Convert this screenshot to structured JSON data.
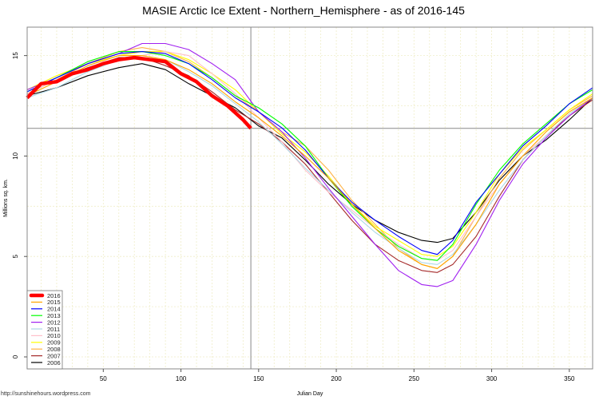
{
  "chart_data": {
    "type": "line",
    "title": "MASIE Arctic Ice Extent - Northern_Hemisphere - as of 2016-145",
    "xlabel": "Julian Day",
    "ylabel": "Millions sq. km.",
    "xlim": [
      1,
      365
    ],
    "ylim": [
      0,
      15.8
    ],
    "xticks": [
      50,
      100,
      150,
      200,
      250,
      300,
      350
    ],
    "yticks": [
      0,
      5,
      10,
      15
    ],
    "grid": true,
    "legend": "bottom-left",
    "reference_lines": {
      "x": 145,
      "y": 11.38
    },
    "days": [
      1,
      20,
      40,
      60,
      75,
      90,
      105,
      120,
      135,
      150,
      165,
      180,
      195,
      210,
      225,
      240,
      255,
      265,
      275,
      290,
      305,
      320,
      335,
      350,
      365
    ],
    "series": [
      {
        "name": "2016",
        "color": "#FF0000",
        "days": [
          1,
          10,
          20,
          30,
          40,
          50,
          60,
          70,
          80,
          90,
          100,
          110,
          120,
          130,
          140,
          145
        ],
        "values": [
          12.9,
          13.6,
          13.7,
          14.1,
          14.3,
          14.6,
          14.8,
          14.9,
          14.8,
          14.7,
          14.1,
          13.7,
          13.0,
          12.5,
          11.8,
          11.38
        ]
      },
      {
        "name": "2015",
        "color": "#FFA500",
        "values": [
          13.0,
          13.7,
          14.5,
          15.0,
          15.0,
          14.8,
          14.3,
          13.6,
          12.7,
          11.9,
          11.0,
          10.0,
          8.9,
          7.6,
          6.4,
          5.3,
          4.6,
          4.4,
          5.0,
          6.6,
          8.6,
          10.0,
          11.2,
          12.2,
          12.9
        ]
      },
      {
        "name": "2014",
        "color": "#0000FF",
        "values": [
          13.2,
          13.9,
          14.6,
          15.1,
          15.2,
          15.1,
          14.6,
          13.8,
          12.9,
          12.2,
          11.4,
          10.3,
          8.9,
          7.7,
          6.8,
          6.0,
          5.3,
          5.1,
          5.8,
          7.7,
          9.1,
          10.5,
          11.5,
          12.6,
          13.4
        ]
      },
      {
        "name": "2013",
        "color": "#00FF00",
        "values": [
          13.2,
          13.9,
          14.7,
          15.2,
          15.2,
          15.0,
          14.6,
          13.9,
          13.0,
          12.4,
          11.6,
          10.5,
          8.9,
          7.5,
          6.4,
          5.5,
          4.9,
          4.8,
          5.6,
          7.6,
          9.3,
          10.6,
          11.6,
          12.6,
          13.3
        ]
      },
      {
        "name": "2012",
        "color": "#A020F0",
        "values": [
          13.3,
          13.9,
          14.6,
          15.1,
          15.6,
          15.6,
          15.3,
          14.6,
          13.8,
          12.2,
          11.2,
          9.9,
          8.4,
          7.0,
          5.6,
          4.3,
          3.6,
          3.5,
          3.8,
          5.6,
          7.8,
          9.6,
          10.9,
          12.0,
          12.9
        ]
      },
      {
        "name": "2011",
        "color": "#ADD8E6",
        "values": [
          12.9,
          13.4,
          14.2,
          14.8,
          14.9,
          14.8,
          14.2,
          13.5,
          12.6,
          11.7,
          10.6,
          9.4,
          8.3,
          7.2,
          6.2,
          5.4,
          4.7,
          4.6,
          5.1,
          6.6,
          8.3,
          9.8,
          11.0,
          12.1,
          12.9
        ]
      },
      {
        "name": "2010",
        "color": "#FFC0CB",
        "values": [
          13.1,
          13.8,
          14.3,
          14.8,
          15.0,
          15.2,
          15.0,
          14.1,
          13.1,
          11.9,
          10.7,
          9.3,
          8.2,
          7.3,
          6.4,
          5.6,
          4.9,
          4.8,
          5.3,
          7.0,
          8.6,
          10.0,
          11.0,
          12.1,
          12.9
        ]
      },
      {
        "name": "2009",
        "color": "#FFFF00",
        "values": [
          13.3,
          14.0,
          14.6,
          15.0,
          15.2,
          15.2,
          14.8,
          14.1,
          13.3,
          12.2,
          11.1,
          10.2,
          9.0,
          7.6,
          6.5,
          5.8,
          5.1,
          5.0,
          5.5,
          7.2,
          9.1,
          10.4,
          11.3,
          12.3,
          13.1
        ]
      },
      {
        "name": "2008",
        "color": "#FFB347",
        "values": [
          13.1,
          13.8,
          14.6,
          15.2,
          15.4,
          15.2,
          14.7,
          13.9,
          13.0,
          12.2,
          11.2,
          10.5,
          9.3,
          7.8,
          6.6,
          5.4,
          4.6,
          4.4,
          5.0,
          7.0,
          8.9,
          10.3,
          11.3,
          12.3,
          13.0
        ]
      },
      {
        "name": "2007",
        "color": "#A52A2A",
        "values": [
          13.1,
          13.8,
          14.4,
          14.9,
          14.9,
          14.5,
          14.0,
          13.2,
          12.3,
          11.6,
          10.7,
          9.6,
          8.2,
          6.8,
          5.6,
          4.8,
          4.3,
          4.2,
          4.6,
          6.0,
          8.0,
          9.8,
          11.0,
          12.0,
          12.8
        ]
      },
      {
        "name": "2006",
        "color": "#000000",
        "values": [
          13.0,
          13.4,
          14.0,
          14.4,
          14.6,
          14.3,
          13.6,
          13.0,
          12.4,
          11.5,
          10.9,
          9.8,
          8.6,
          7.6,
          6.8,
          6.2,
          5.8,
          5.7,
          5.9,
          7.2,
          8.8,
          10.0,
          10.8,
          11.8,
          12.9
        ]
      }
    ]
  },
  "footer": {
    "source": "http://sunshinehours.wordpress.com"
  }
}
